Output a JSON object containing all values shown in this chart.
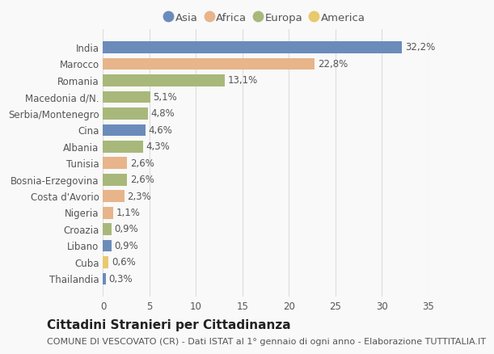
{
  "categories": [
    "India",
    "Marocco",
    "Romania",
    "Macedonia d/N.",
    "Serbia/Montenegro",
    "Cina",
    "Albania",
    "Tunisia",
    "Bosnia-Erzegovina",
    "Costa d'Avorio",
    "Nigeria",
    "Croazia",
    "Libano",
    "Cuba",
    "Thailandia"
  ],
  "values": [
    32.2,
    22.8,
    13.1,
    5.1,
    4.8,
    4.6,
    4.3,
    2.6,
    2.6,
    2.3,
    1.1,
    0.9,
    0.9,
    0.6,
    0.3
  ],
  "labels": [
    "32,2%",
    "22,8%",
    "13,1%",
    "5,1%",
    "4,8%",
    "4,6%",
    "4,3%",
    "2,6%",
    "2,6%",
    "2,3%",
    "1,1%",
    "0,9%",
    "0,9%",
    "0,6%",
    "0,3%"
  ],
  "colors": [
    "#6b8cba",
    "#e8b48a",
    "#a8b87a",
    "#a8b87a",
    "#a8b87a",
    "#6b8cba",
    "#a8b87a",
    "#e8b48a",
    "#a8b87a",
    "#e8b48a",
    "#e8b48a",
    "#a8b87a",
    "#6b8cba",
    "#e8c96e",
    "#6b8cba"
  ],
  "legend_labels": [
    "Asia",
    "Africa",
    "Europa",
    "America"
  ],
  "legend_colors": [
    "#6b8cba",
    "#e8b48a",
    "#a8b87a",
    "#e8c96e"
  ],
  "title": "Cittadini Stranieri per Cittadinanza",
  "subtitle": "COMUNE DI VESCOVATO (CR) - Dati ISTAT al 1° gennaio di ogni anno - Elaborazione TUTTITALIA.IT",
  "xlim": [
    0,
    35
  ],
  "xticks": [
    0,
    5,
    10,
    15,
    20,
    25,
    30,
    35
  ],
  "background_color": "#f9f9f9",
  "grid_color": "#dddddd",
  "title_fontsize": 11,
  "subtitle_fontsize": 8,
  "label_fontsize": 8.5,
  "tick_fontsize": 8.5,
  "legend_fontsize": 9.5
}
